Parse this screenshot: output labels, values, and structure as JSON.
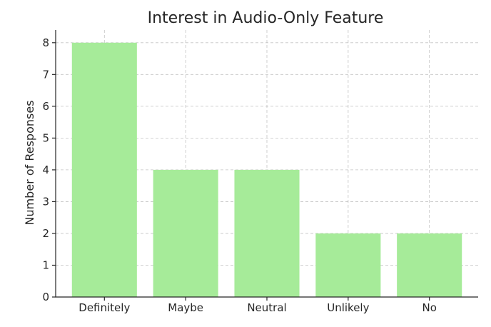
{
  "chart_data": {
    "type": "bar",
    "title": "Interest in Audio-Only Feature",
    "xlabel": "",
    "ylabel": "Number of Responses",
    "categories": [
      "Definitely",
      "Maybe",
      "Neutral",
      "Unlikely",
      "No"
    ],
    "values": [
      8,
      4,
      4,
      2,
      2
    ],
    "ylim": [
      0,
      8.4
    ],
    "yticks": [
      0,
      1,
      2,
      3,
      4,
      5,
      6,
      7,
      8
    ],
    "grid": true,
    "bar_color": "#a6eb99"
  }
}
